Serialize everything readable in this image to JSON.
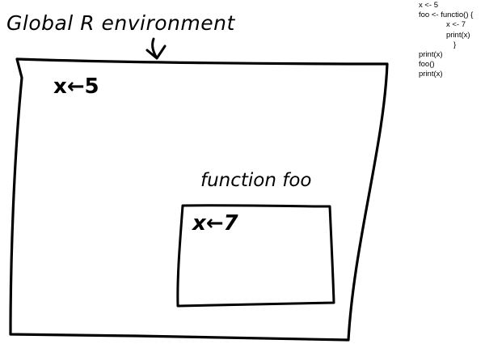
{
  "diagram": {
    "global_label": "Global R environment",
    "global_assignment": "x←5",
    "function_label": "function foo",
    "function_assignment": "x←7"
  },
  "code": {
    "lines": [
      "x <- 5",
      "foo <- functio() {",
      "x <- 7",
      "print(x)",
      "}",
      "print(x)",
      "foo()",
      "print(x)"
    ]
  }
}
